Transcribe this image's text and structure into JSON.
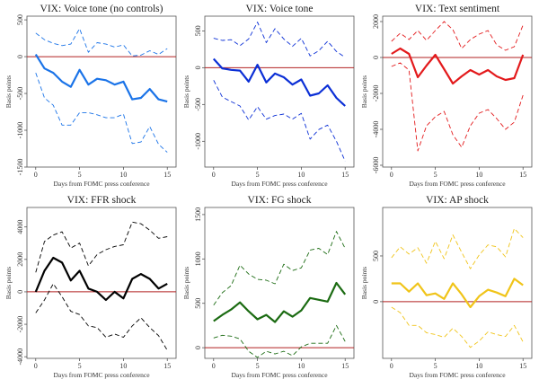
{
  "chart_data": [
    {
      "type": "line",
      "title": "VIX: Voice tone (no controls)",
      "xlabel": "Days from FOMC press conference",
      "ylabel": "Basis points",
      "xlim": [
        -1,
        16
      ],
      "ylim": [
        -1500,
        550
      ],
      "xticks": [
        0,
        5,
        10,
        15
      ],
      "yticks": [
        -1500,
        -1000,
        -500,
        0,
        500
      ],
      "color": "#1a73e8",
      "zero_line_color": "#b22222",
      "x": [
        0,
        1,
        2,
        3,
        4,
        5,
        6,
        7,
        8,
        9,
        10,
        11,
        12,
        13,
        14,
        15
      ],
      "series": [
        {
          "role": "estimate",
          "style": "solid",
          "values": [
            30,
            -160,
            -220,
            -340,
            -410,
            -180,
            -380,
            -300,
            -320,
            -380,
            -340,
            -580,
            -560,
            -440,
            -580,
            -610
          ]
        },
        {
          "role": "upper",
          "style": "dashed",
          "values": [
            320,
            230,
            180,
            150,
            170,
            380,
            60,
            190,
            170,
            130,
            160,
            10,
            20,
            80,
            30,
            110
          ]
        },
        {
          "role": "lower",
          "style": "dashed",
          "values": [
            -220,
            -560,
            -660,
            -930,
            -930,
            -760,
            -760,
            -790,
            -830,
            -830,
            -780,
            -1180,
            -1160,
            -950,
            -1190,
            -1300
          ]
        }
      ]
    },
    {
      "type": "line",
      "title": "VIX: Voice tone",
      "xlabel": "Days from FOMC press conference",
      "ylabel": "Basis points",
      "xlim": [
        -1,
        16
      ],
      "ylim": [
        -1350,
        700
      ],
      "xticks": [
        0,
        5,
        10,
        15
      ],
      "yticks": [
        -1000,
        -500,
        0,
        500
      ],
      "color": "#0b2fd6",
      "zero_line_color": "#b22222",
      "x": [
        0,
        1,
        2,
        3,
        4,
        5,
        6,
        7,
        8,
        9,
        10,
        11,
        12,
        13,
        14,
        15
      ],
      "series": [
        {
          "role": "estimate",
          "style": "solid",
          "values": [
            120,
            -10,
            -30,
            -40,
            -190,
            40,
            -200,
            -80,
            -130,
            -230,
            -160,
            -380,
            -350,
            -240,
            -410,
            -520
          ]
        },
        {
          "role": "upper",
          "style": "dashed",
          "values": [
            400,
            370,
            380,
            300,
            390,
            620,
            340,
            530,
            390,
            290,
            400,
            160,
            230,
            360,
            220,
            140
          ]
        },
        {
          "role": "lower",
          "style": "dashed",
          "values": [
            -170,
            -400,
            -460,
            -520,
            -710,
            -530,
            -700,
            -650,
            -630,
            -700,
            -620,
            -970,
            -840,
            -780,
            -1000,
            -1270
          ]
        }
      ]
    },
    {
      "type": "line",
      "title": "VIX: Text sentiment",
      "xlabel": "Days from FOMC press conference",
      "ylabel": "Basis points",
      "xlim": [
        -1,
        16
      ],
      "ylim": [
        -6100,
        2300
      ],
      "xticks": [
        0,
        5,
        10,
        15
      ],
      "yticks": [
        -6000,
        -4000,
        -2000,
        0,
        2000
      ],
      "color": "#e31a1c",
      "zero_line_color": "#b22222",
      "x": [
        0,
        1,
        2,
        3,
        4,
        5,
        6,
        7,
        8,
        9,
        10,
        11,
        12,
        13,
        14,
        15
      ],
      "series": [
        {
          "role": "estimate",
          "style": "solid",
          "values": [
            200,
            500,
            200,
            -1100,
            -450,
            150,
            -650,
            -1450,
            -1050,
            -700,
            -950,
            -700,
            -1050,
            -1250,
            -1150,
            150
          ]
        },
        {
          "role": "upper",
          "style": "dashed",
          "values": [
            900,
            1350,
            1000,
            1500,
            950,
            1500,
            2000,
            1550,
            500,
            1000,
            1300,
            1500,
            700,
            400,
            600,
            1800
          ]
        },
        {
          "role": "lower",
          "style": "dashed",
          "values": [
            -500,
            -300,
            -700,
            -5200,
            -3800,
            -3300,
            -3000,
            -4300,
            -5000,
            -3800,
            -3100,
            -2900,
            -3400,
            -4000,
            -3600,
            -2100
          ]
        }
      ]
    },
    {
      "type": "line",
      "title": "VIX: FFR shock",
      "xlabel": "Days from FOMC press conference",
      "ylabel": "Basis points",
      "xlim": [
        -1,
        16
      ],
      "ylim": [
        -4100,
        5200
      ],
      "xticks": [
        0,
        5,
        10,
        15
      ],
      "yticks": [
        -4000,
        -2000,
        0,
        2000,
        4000
      ],
      "color": "#000000",
      "zero_line_color": "#b22222",
      "x": [
        0,
        1,
        2,
        3,
        4,
        5,
        6,
        7,
        8,
        9,
        10,
        11,
        12,
        13,
        14,
        15
      ],
      "series": [
        {
          "role": "estimate",
          "style": "solid",
          "values": [
            0,
            1300,
            2100,
            1800,
            700,
            1300,
            200,
            0,
            -500,
            0,
            -400,
            800,
            1100,
            800,
            200,
            500
          ]
        },
        {
          "role": "upper",
          "style": "dashed",
          "values": [
            1200,
            3100,
            3500,
            3700,
            2700,
            3000,
            1600,
            2300,
            2600,
            2800,
            2900,
            4300,
            4200,
            3800,
            3300,
            3400
          ]
        },
        {
          "role": "lower",
          "style": "dashed",
          "values": [
            -1300,
            -500,
            500,
            -300,
            -1200,
            -1400,
            -2100,
            -2200,
            -2800,
            -2600,
            -2800,
            -2100,
            -1600,
            -2200,
            -2700,
            -3600
          ]
        }
      ]
    },
    {
      "type": "line",
      "title": "VIX: FG shock",
      "xlabel": "Days from FOMC press conference",
      "ylabel": "Basis points",
      "xlim": [
        -1,
        16
      ],
      "ylim": [
        -120,
        1580
      ],
      "xticks": [
        0,
        5,
        10,
        15
      ],
      "yticks": [
        0,
        500,
        1000,
        1500
      ],
      "color": "#1b6b12",
      "zero_line_color": "#b22222",
      "x": [
        0,
        1,
        2,
        3,
        4,
        5,
        6,
        7,
        8,
        9,
        10,
        11,
        12,
        13,
        14,
        15
      ],
      "series": [
        {
          "role": "estimate",
          "style": "solid",
          "values": [
            300,
            370,
            430,
            510,
            410,
            320,
            370,
            290,
            410,
            350,
            420,
            560,
            540,
            520,
            730,
            600
          ]
        },
        {
          "role": "upper",
          "style": "dashed",
          "values": [
            480,
            620,
            700,
            930,
            830,
            770,
            760,
            720,
            940,
            870,
            900,
            1100,
            1120,
            1050,
            1310,
            1120
          ]
        },
        {
          "role": "lower",
          "style": "dashed",
          "values": [
            110,
            140,
            130,
            100,
            -40,
            -110,
            -40,
            -70,
            -40,
            -90,
            10,
            50,
            50,
            50,
            250,
            70
          ]
        }
      ]
    },
    {
      "type": "line",
      "title": "VIX: AP shock",
      "xlabel": "Days from FOMC press conference",
      "ylabel": "Basis points",
      "xlim": [
        -1,
        16
      ],
      "ylim": [
        -620,
        1030
      ],
      "xticks": [
        0,
        5,
        10,
        15
      ],
      "yticks": [
        0,
        500
      ],
      "color": "#f0c419",
      "zero_line_color": "#b22222",
      "x": [
        0,
        1,
        2,
        3,
        4,
        5,
        6,
        7,
        8,
        9,
        10,
        11,
        12,
        13,
        14,
        15
      ],
      "series": [
        {
          "role": "estimate",
          "style": "solid",
          "values": [
            200,
            200,
            110,
            200,
            70,
            90,
            30,
            200,
            80,
            -60,
            60,
            130,
            100,
            60,
            250,
            180
          ]
        },
        {
          "role": "upper",
          "style": "dashed",
          "values": [
            480,
            600,
            520,
            590,
            420,
            660,
            470,
            730,
            540,
            360,
            510,
            620,
            600,
            490,
            800,
            700
          ]
        },
        {
          "role": "lower",
          "style": "dashed",
          "values": [
            -60,
            -120,
            -260,
            -260,
            -340,
            -360,
            -390,
            -290,
            -380,
            -500,
            -430,
            -330,
            -360,
            -380,
            -260,
            -440
          ]
        }
      ]
    }
  ]
}
